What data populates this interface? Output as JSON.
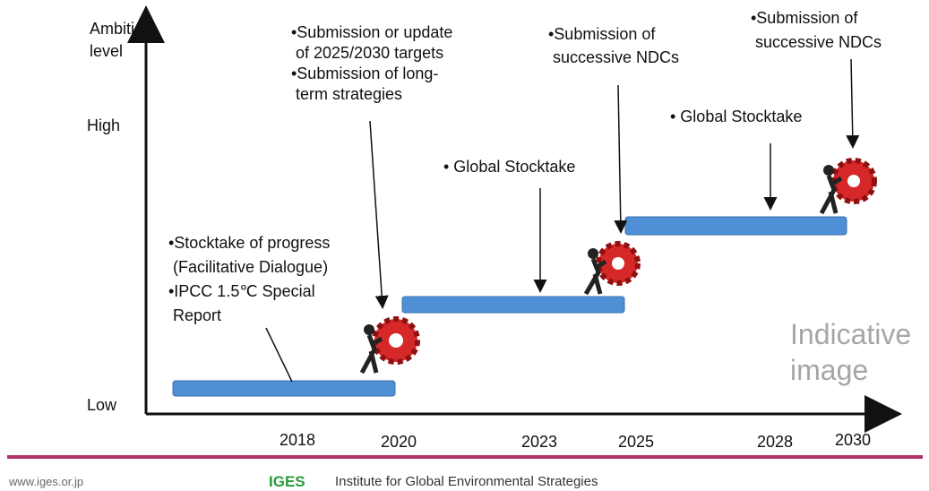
{
  "axis": {
    "y_label": [
      "Ambition",
      "level"
    ],
    "high": "High",
    "low": "Low",
    "x_labels": [
      "2018",
      "2020",
      "2023",
      "2025",
      "2028",
      "2030"
    ]
  },
  "annotations": [
    {
      "lines": [
        "•Stocktake of progress",
        " (Facilitative Dialogue)",
        "•IPCC 1.5℃ Special",
        " Report"
      ]
    },
    {
      "lines": [
        "•Submission or update",
        " of 2025/2030 targets",
        "•Submission of long-",
        " term strategies"
      ]
    },
    {
      "lines": [
        "• Global Stocktake"
      ]
    },
    {
      "lines": [
        "•Submission of",
        " successive NDCs"
      ]
    },
    {
      "lines": [
        "• Global Stocktake"
      ]
    },
    {
      "lines": [
        "•Submission of",
        " successive NDCs"
      ]
    }
  ],
  "watermark": [
    "Indicative",
    "image"
  ],
  "footer": {
    "url": "www.iges.or.jp",
    "logo": "IGES",
    "org": "Institute for Global Environmental Strategies"
  }
}
